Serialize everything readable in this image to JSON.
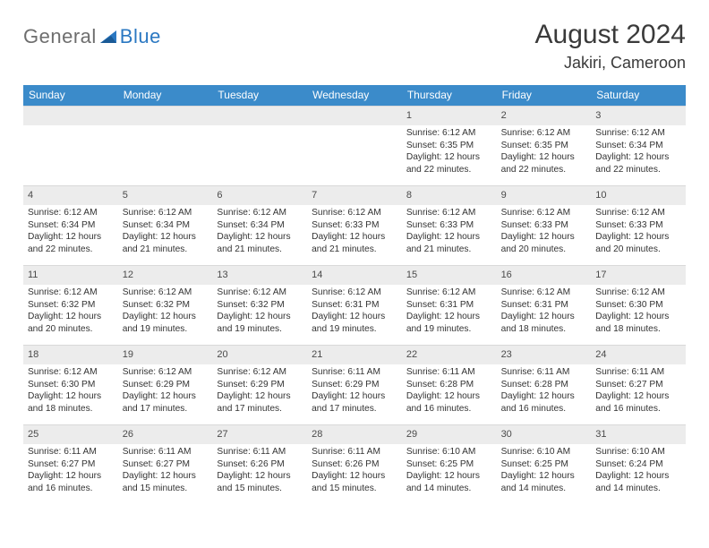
{
  "logo": {
    "general": "General",
    "blue": "Blue"
  },
  "title": "August 2024",
  "location": "Jakiri, Cameroon",
  "colors": {
    "headerBar": "#3b8bca",
    "headerText": "#ffffff",
    "dayNumberBg": "#ececec",
    "bodyText": "#333333",
    "logoGray": "#6e6e6e",
    "logoBlue": "#2b78c2"
  },
  "weekdays": [
    "Sunday",
    "Monday",
    "Tuesday",
    "Wednesday",
    "Thursday",
    "Friday",
    "Saturday"
  ],
  "weeks": [
    [
      {
        "n": "",
        "sunrise": "",
        "sunset": "",
        "daylight": ""
      },
      {
        "n": "",
        "sunrise": "",
        "sunset": "",
        "daylight": ""
      },
      {
        "n": "",
        "sunrise": "",
        "sunset": "",
        "daylight": ""
      },
      {
        "n": "",
        "sunrise": "",
        "sunset": "",
        "daylight": ""
      },
      {
        "n": "1",
        "sunrise": "Sunrise: 6:12 AM",
        "sunset": "Sunset: 6:35 PM",
        "daylight": "Daylight: 12 hours and 22 minutes."
      },
      {
        "n": "2",
        "sunrise": "Sunrise: 6:12 AM",
        "sunset": "Sunset: 6:35 PM",
        "daylight": "Daylight: 12 hours and 22 minutes."
      },
      {
        "n": "3",
        "sunrise": "Sunrise: 6:12 AM",
        "sunset": "Sunset: 6:34 PM",
        "daylight": "Daylight: 12 hours and 22 minutes."
      }
    ],
    [
      {
        "n": "4",
        "sunrise": "Sunrise: 6:12 AM",
        "sunset": "Sunset: 6:34 PM",
        "daylight": "Daylight: 12 hours and 22 minutes."
      },
      {
        "n": "5",
        "sunrise": "Sunrise: 6:12 AM",
        "sunset": "Sunset: 6:34 PM",
        "daylight": "Daylight: 12 hours and 21 minutes."
      },
      {
        "n": "6",
        "sunrise": "Sunrise: 6:12 AM",
        "sunset": "Sunset: 6:34 PM",
        "daylight": "Daylight: 12 hours and 21 minutes."
      },
      {
        "n": "7",
        "sunrise": "Sunrise: 6:12 AM",
        "sunset": "Sunset: 6:33 PM",
        "daylight": "Daylight: 12 hours and 21 minutes."
      },
      {
        "n": "8",
        "sunrise": "Sunrise: 6:12 AM",
        "sunset": "Sunset: 6:33 PM",
        "daylight": "Daylight: 12 hours and 21 minutes."
      },
      {
        "n": "9",
        "sunrise": "Sunrise: 6:12 AM",
        "sunset": "Sunset: 6:33 PM",
        "daylight": "Daylight: 12 hours and 20 minutes."
      },
      {
        "n": "10",
        "sunrise": "Sunrise: 6:12 AM",
        "sunset": "Sunset: 6:33 PM",
        "daylight": "Daylight: 12 hours and 20 minutes."
      }
    ],
    [
      {
        "n": "11",
        "sunrise": "Sunrise: 6:12 AM",
        "sunset": "Sunset: 6:32 PM",
        "daylight": "Daylight: 12 hours and 20 minutes."
      },
      {
        "n": "12",
        "sunrise": "Sunrise: 6:12 AM",
        "sunset": "Sunset: 6:32 PM",
        "daylight": "Daylight: 12 hours and 19 minutes."
      },
      {
        "n": "13",
        "sunrise": "Sunrise: 6:12 AM",
        "sunset": "Sunset: 6:32 PM",
        "daylight": "Daylight: 12 hours and 19 minutes."
      },
      {
        "n": "14",
        "sunrise": "Sunrise: 6:12 AM",
        "sunset": "Sunset: 6:31 PM",
        "daylight": "Daylight: 12 hours and 19 minutes."
      },
      {
        "n": "15",
        "sunrise": "Sunrise: 6:12 AM",
        "sunset": "Sunset: 6:31 PM",
        "daylight": "Daylight: 12 hours and 19 minutes."
      },
      {
        "n": "16",
        "sunrise": "Sunrise: 6:12 AM",
        "sunset": "Sunset: 6:31 PM",
        "daylight": "Daylight: 12 hours and 18 minutes."
      },
      {
        "n": "17",
        "sunrise": "Sunrise: 6:12 AM",
        "sunset": "Sunset: 6:30 PM",
        "daylight": "Daylight: 12 hours and 18 minutes."
      }
    ],
    [
      {
        "n": "18",
        "sunrise": "Sunrise: 6:12 AM",
        "sunset": "Sunset: 6:30 PM",
        "daylight": "Daylight: 12 hours and 18 minutes."
      },
      {
        "n": "19",
        "sunrise": "Sunrise: 6:12 AM",
        "sunset": "Sunset: 6:29 PM",
        "daylight": "Daylight: 12 hours and 17 minutes."
      },
      {
        "n": "20",
        "sunrise": "Sunrise: 6:12 AM",
        "sunset": "Sunset: 6:29 PM",
        "daylight": "Daylight: 12 hours and 17 minutes."
      },
      {
        "n": "21",
        "sunrise": "Sunrise: 6:11 AM",
        "sunset": "Sunset: 6:29 PM",
        "daylight": "Daylight: 12 hours and 17 minutes."
      },
      {
        "n": "22",
        "sunrise": "Sunrise: 6:11 AM",
        "sunset": "Sunset: 6:28 PM",
        "daylight": "Daylight: 12 hours and 16 minutes."
      },
      {
        "n": "23",
        "sunrise": "Sunrise: 6:11 AM",
        "sunset": "Sunset: 6:28 PM",
        "daylight": "Daylight: 12 hours and 16 minutes."
      },
      {
        "n": "24",
        "sunrise": "Sunrise: 6:11 AM",
        "sunset": "Sunset: 6:27 PM",
        "daylight": "Daylight: 12 hours and 16 minutes."
      }
    ],
    [
      {
        "n": "25",
        "sunrise": "Sunrise: 6:11 AM",
        "sunset": "Sunset: 6:27 PM",
        "daylight": "Daylight: 12 hours and 16 minutes."
      },
      {
        "n": "26",
        "sunrise": "Sunrise: 6:11 AM",
        "sunset": "Sunset: 6:27 PM",
        "daylight": "Daylight: 12 hours and 15 minutes."
      },
      {
        "n": "27",
        "sunrise": "Sunrise: 6:11 AM",
        "sunset": "Sunset: 6:26 PM",
        "daylight": "Daylight: 12 hours and 15 minutes."
      },
      {
        "n": "28",
        "sunrise": "Sunrise: 6:11 AM",
        "sunset": "Sunset: 6:26 PM",
        "daylight": "Daylight: 12 hours and 15 minutes."
      },
      {
        "n": "29",
        "sunrise": "Sunrise: 6:10 AM",
        "sunset": "Sunset: 6:25 PM",
        "daylight": "Daylight: 12 hours and 14 minutes."
      },
      {
        "n": "30",
        "sunrise": "Sunrise: 6:10 AM",
        "sunset": "Sunset: 6:25 PM",
        "daylight": "Daylight: 12 hours and 14 minutes."
      },
      {
        "n": "31",
        "sunrise": "Sunrise: 6:10 AM",
        "sunset": "Sunset: 6:24 PM",
        "daylight": "Daylight: 12 hours and 14 minutes."
      }
    ]
  ]
}
